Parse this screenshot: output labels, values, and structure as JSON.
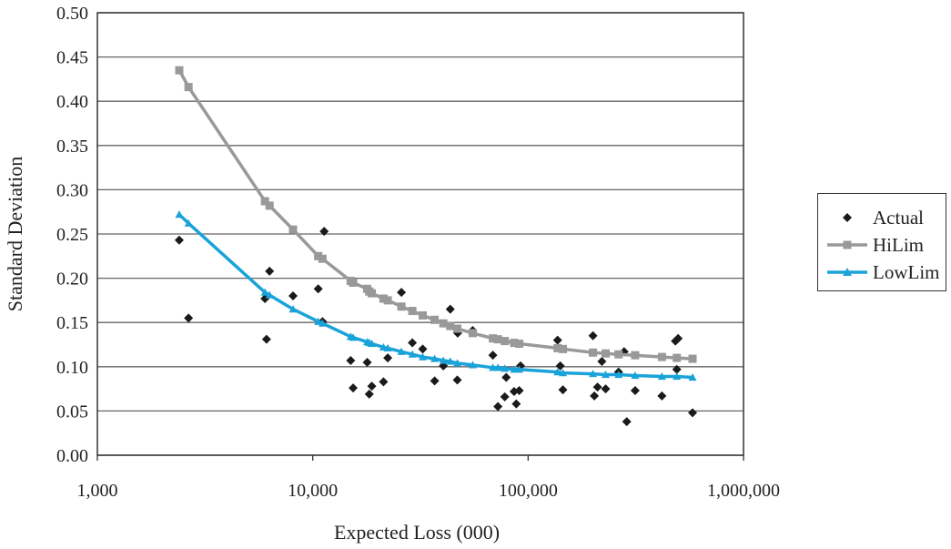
{
  "chart_data": {
    "type": "scatter",
    "xlabel": "Expected Loss (000)",
    "ylabel": "Standard Deviation",
    "xscale": "log",
    "xlim": [
      1000,
      1000000
    ],
    "ylim": [
      0,
      0.5
    ],
    "x_ticks": [
      1000,
      10000,
      100000,
      1000000
    ],
    "x_tick_labels": [
      "1,000",
      "10,000",
      "100,000",
      "1,000,000"
    ],
    "y_ticks": [
      0,
      0.05,
      0.1,
      0.15,
      0.2,
      0.25,
      0.3,
      0.35,
      0.4,
      0.45,
      0.5
    ],
    "y_tick_labels": [
      "0.00",
      "0.05",
      "0.10",
      "0.15",
      "0.20",
      "0.25",
      "0.30",
      "0.35",
      "0.40",
      "0.45",
      "0.50"
    ],
    "grid": "horizontal",
    "legend_position": "right",
    "series": [
      {
        "name": "Actual",
        "color": "#1a1a1a",
        "marker": "diamond",
        "points": [
          [
            2400,
            0.243
          ],
          [
            2650,
            0.155
          ],
          [
            6000,
            0.177
          ],
          [
            6100,
            0.131
          ],
          [
            6300,
            0.208
          ],
          [
            8100,
            0.18
          ],
          [
            10600,
            0.188
          ],
          [
            11100,
            0.151
          ],
          [
            11300,
            0.253
          ],
          [
            15000,
            0.107
          ],
          [
            15400,
            0.076
          ],
          [
            17900,
            0.105
          ],
          [
            18300,
            0.069
          ],
          [
            18800,
            0.078
          ],
          [
            21300,
            0.083
          ],
          [
            22300,
            0.11
          ],
          [
            25800,
            0.184
          ],
          [
            29000,
            0.127
          ],
          [
            32400,
            0.12
          ],
          [
            36800,
            0.084
          ],
          [
            40400,
            0.101
          ],
          [
            43500,
            0.165
          ],
          [
            46900,
            0.085
          ],
          [
            47100,
            0.138
          ],
          [
            55300,
            0.141
          ],
          [
            68600,
            0.113
          ],
          [
            72400,
            0.055
          ],
          [
            77900,
            0.066
          ],
          [
            79100,
            0.088
          ],
          [
            86100,
            0.072
          ],
          [
            88100,
            0.058
          ],
          [
            90900,
            0.073
          ],
          [
            92200,
            0.101
          ],
          [
            137000,
            0.13
          ],
          [
            141000,
            0.101
          ],
          [
            145000,
            0.074
          ],
          [
            200000,
            0.135
          ],
          [
            203000,
            0.067
          ],
          [
            210000,
            0.077
          ],
          [
            220000,
            0.106
          ],
          [
            229000,
            0.075
          ],
          [
            263000,
            0.094
          ],
          [
            279000,
            0.117
          ],
          [
            287000,
            0.038
          ],
          [
            314000,
            0.073
          ],
          [
            418000,
            0.067
          ],
          [
            483000,
            0.129
          ],
          [
            490000,
            0.097
          ],
          [
            497000,
            0.132
          ],
          [
            580000,
            0.048
          ]
        ]
      },
      {
        "name": "HiLim",
        "color": "#999999",
        "marker": "square",
        "points": [
          [
            2400,
            0.435
          ],
          [
            2650,
            0.416
          ],
          [
            6000,
            0.287
          ],
          [
            6300,
            0.282
          ],
          [
            8100,
            0.255
          ],
          [
            10600,
            0.225
          ],
          [
            11100,
            0.222
          ],
          [
            15000,
            0.197
          ],
          [
            15400,
            0.195
          ],
          [
            17900,
            0.188
          ],
          [
            18300,
            0.185
          ],
          [
            18800,
            0.183
          ],
          [
            21300,
            0.177
          ],
          [
            22300,
            0.175
          ],
          [
            25800,
            0.168
          ],
          [
            29000,
            0.163
          ],
          [
            32400,
            0.158
          ],
          [
            36800,
            0.153
          ],
          [
            40400,
            0.149
          ],
          [
            43500,
            0.146
          ],
          [
            46900,
            0.143
          ],
          [
            55300,
            0.138
          ],
          [
            68600,
            0.132
          ],
          [
            72400,
            0.131
          ],
          [
            77900,
            0.129
          ],
          [
            86100,
            0.127
          ],
          [
            90900,
            0.126
          ],
          [
            137000,
            0.121
          ],
          [
            145000,
            0.12
          ],
          [
            200000,
            0.116
          ],
          [
            229000,
            0.115
          ],
          [
            263000,
            0.114
          ],
          [
            314000,
            0.113
          ],
          [
            418000,
            0.111
          ],
          [
            490000,
            0.11
          ],
          [
            580000,
            0.109
          ]
        ]
      },
      {
        "name": "LowLim",
        "color": "#1aa3d9",
        "marker": "triangle",
        "points": [
          [
            2400,
            0.272
          ],
          [
            2650,
            0.262
          ],
          [
            6000,
            0.184
          ],
          [
            6300,
            0.181
          ],
          [
            8100,
            0.165
          ],
          [
            10600,
            0.151
          ],
          [
            11100,
            0.149
          ],
          [
            15000,
            0.134
          ],
          [
            15400,
            0.133
          ],
          [
            17900,
            0.128
          ],
          [
            18300,
            0.127
          ],
          [
            18800,
            0.126
          ],
          [
            21300,
            0.122
          ],
          [
            22300,
            0.121
          ],
          [
            25800,
            0.117
          ],
          [
            29000,
            0.114
          ],
          [
            32400,
            0.111
          ],
          [
            36800,
            0.109
          ],
          [
            40400,
            0.107
          ],
          [
            43500,
            0.106
          ],
          [
            46900,
            0.104
          ],
          [
            55300,
            0.102
          ],
          [
            68600,
            0.099
          ],
          [
            72400,
            0.099
          ],
          [
            77900,
            0.098
          ],
          [
            86100,
            0.097
          ],
          [
            90900,
            0.097
          ],
          [
            137000,
            0.094
          ],
          [
            145000,
            0.093
          ],
          [
            200000,
            0.092
          ],
          [
            229000,
            0.091
          ],
          [
            263000,
            0.091
          ],
          [
            314000,
            0.09
          ],
          [
            418000,
            0.089
          ],
          [
            490000,
            0.089
          ],
          [
            580000,
            0.088
          ]
        ]
      }
    ]
  }
}
